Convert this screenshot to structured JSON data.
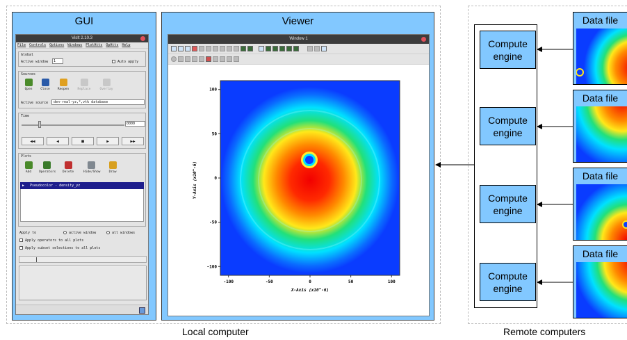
{
  "colors": {
    "panel_blue": "#82c8ff",
    "colormap": [
      "#0a3cff",
      "#00e1ff",
      "#22e07a",
      "#ffe81a",
      "#ff8a00",
      "#f20000"
    ]
  },
  "local": {
    "caption": "Local computer",
    "gui": {
      "title": "GUI",
      "window_title": "VisIt 2.10.3",
      "menu": [
        "File",
        "Controls",
        "Options",
        "Windows",
        "PlotAtts",
        "OpAtts",
        "Help"
      ],
      "global_label": "Global",
      "active_window_label": "Active window",
      "active_window_value": "1",
      "auto_apply_label": "Auto apply",
      "sources_label": "Sources",
      "source_buttons": [
        "Open",
        "Close",
        "Reopen",
        "Replace",
        "Overlay"
      ],
      "active_source_label": "Active source",
      "active_source_value": "den-real-yz,*,vtk database",
      "time_label": "Time",
      "time_value": "0000",
      "vcr_buttons": [
        "◀◀",
        "◀",
        "■",
        "▶",
        "▶▶"
      ],
      "plots_label": "Plots",
      "plot_buttons": [
        "Add",
        "Operators",
        "Delete",
        "Hide/Show",
        "Draw"
      ],
      "plot_entry": "Pseudocolor - density_yz",
      "apply_to_label": "Apply to",
      "apply_options": [
        "active window",
        "all windows"
      ],
      "apply_operators_label": "Apply operators to all plots",
      "apply_subset_label": "Apply subset selections to all plots"
    },
    "viewer": {
      "title": "Viewer",
      "window_title": "Window 1"
    }
  },
  "remote": {
    "caption": "Remote computers",
    "engines": [
      {
        "label": "Compute engine"
      },
      {
        "label": "Compute engine"
      },
      {
        "label": "Compute engine"
      },
      {
        "label": "Compute engine"
      }
    ],
    "data_files": [
      {
        "label": "Data file"
      },
      {
        "label": "Data file"
      },
      {
        "label": "Data file"
      },
      {
        "label": "Data file"
      }
    ]
  },
  "chart_data": {
    "type": "heatmap",
    "title": "",
    "xlabel": "X-Axis (x10^-6)",
    "ylabel": "Y-Axis (x10^-6)",
    "xlim": [
      -110,
      110
    ],
    "ylim": [
      -110,
      110
    ],
    "x_ticks": [
      "-100",
      "-50",
      "0",
      "50",
      "100"
    ],
    "y_ticks": [
      "100",
      "50",
      "0",
      "-50",
      "-100"
    ]
  }
}
